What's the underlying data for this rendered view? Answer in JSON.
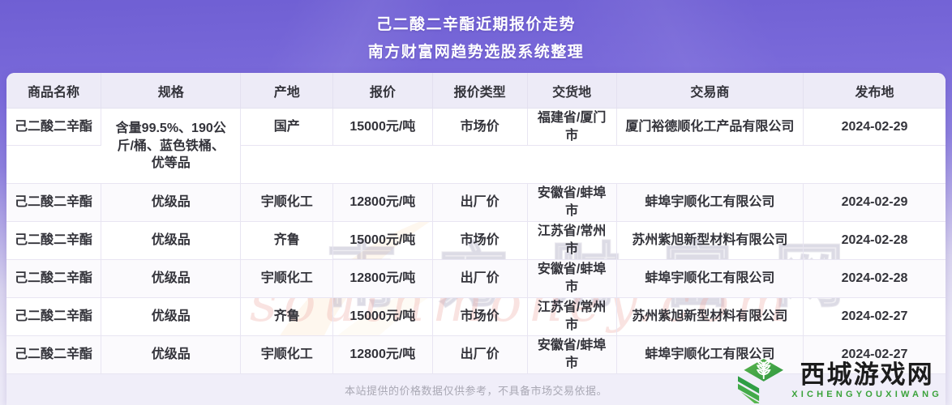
{
  "banner": {
    "title": "己二酸二辛酯近期报价走势",
    "subtitle": "南方财富网趋势选股系统整理"
  },
  "table": {
    "columns": [
      "商品名称",
      "规格",
      "产地",
      "报价",
      "报价类型",
      "交货地",
      "交易商",
      "发布地"
    ],
    "rows": [
      [
        "己二酸二辛酯",
        "含量99.5%、190公斤/桶、蓝色铁桶、优等品",
        "国产",
        "15000元/吨",
        "市场价",
        "福建省/厦门市",
        "厦门裕德顺化工产品有限公司",
        "2024-02-29"
      ],
      [
        "己二酸二辛酯",
        "优级品",
        "宇顺化工",
        "12800元/吨",
        "出厂价",
        "安徽省/蚌埠市",
        "蚌埠宇顺化工有限公司",
        "2024-02-29"
      ],
      [
        "己二酸二辛酯",
        "优级品",
        "齐鲁",
        "15000元/吨",
        "市场价",
        "江苏省/常州市",
        "苏州紫旭新型材料有限公司",
        "2024-02-28"
      ],
      [
        "己二酸二辛酯",
        "优级品",
        "宇顺化工",
        "12800元/吨",
        "出厂价",
        "安徽省/蚌埠市",
        "蚌埠宇顺化工有限公司",
        "2024-02-28"
      ],
      [
        "己二酸二辛酯",
        "优级品",
        "齐鲁",
        "15000元/吨",
        "市场价",
        "江苏省/常州市",
        "苏州紫旭新型材料有限公司",
        "2024-02-27"
      ],
      [
        "己二酸二辛酯",
        "优级品",
        "宇顺化工",
        "12800元/吨",
        "出厂价",
        "安徽省/蚌埠市",
        "蚌埠宇顺化工有限公司",
        "2024-02-27"
      ]
    ]
  },
  "watermark": {
    "site_cn": "南方财富网",
    "site_en": "southmoney.com"
  },
  "footer": {
    "disclaimer": "本站提供的价格数据仅供参考，不具备市场交易依据。"
  },
  "brand": {
    "name_cn": "西城游戏网",
    "name_en": "XICHENGYOUXIWANG"
  },
  "colors": {
    "banner_purple": "#7a6ada",
    "header_row_bg": "#edebf7",
    "grid_line": "#e8e5f2",
    "footer_bg": "#f0eef9",
    "text_dark": "#33333a",
    "brand_green": "#3aa23a",
    "watermark_pink": "#eeacA8"
  }
}
